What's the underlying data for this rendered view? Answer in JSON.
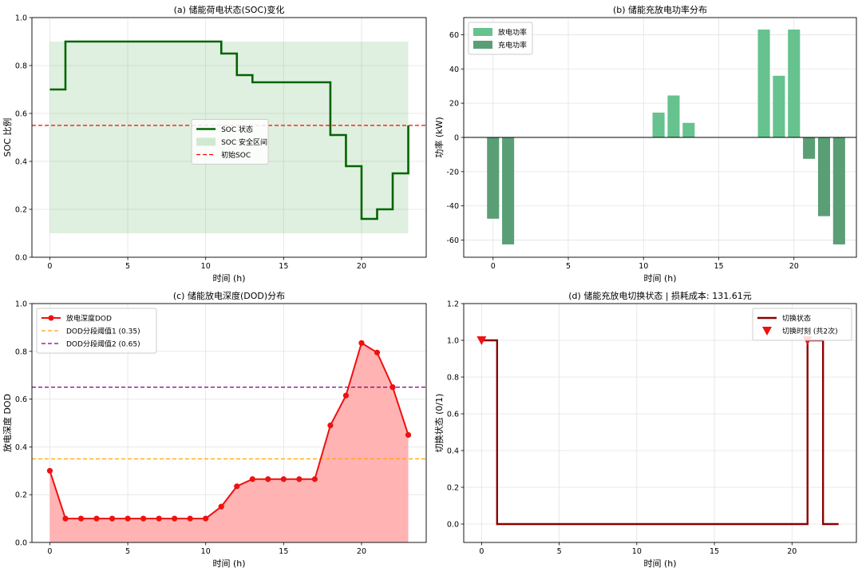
{
  "chart_data": [
    {
      "type": "line",
      "id": "a",
      "title": "(a) 储能荷电状态(SOC)变化",
      "xlabel": "时间 (h)",
      "ylabel": "SOC 比例",
      "xlim": [
        -1.15,
        24.15
      ],
      "ylim": [
        0,
        1.0
      ],
      "xticks": [
        0,
        5,
        10,
        15,
        20
      ],
      "yticks": [
        0.0,
        0.2,
        0.4,
        0.6,
        0.8,
        1.0
      ],
      "ytick_format": 1,
      "grid": true,
      "legend": "center-right",
      "x": [
        0,
        1,
        2,
        3,
        4,
        5,
        6,
        7,
        8,
        9,
        10,
        11,
        12,
        13,
        14,
        15,
        16,
        17,
        18,
        19,
        20,
        21,
        22,
        23
      ],
      "series": [
        {
          "name": "SOC 状态",
          "style": "step-post",
          "color": "#006400",
          "values": [
            0.7,
            0.9,
            0.9,
            0.9,
            0.9,
            0.9,
            0.9,
            0.9,
            0.9,
            0.9,
            0.9,
            0.85,
            0.76,
            0.73,
            0.73,
            0.73,
            0.73,
            0.73,
            0.51,
            0.38,
            0.16,
            0.2,
            0.35,
            0.55
          ]
        }
      ],
      "band": {
        "name": "SOC 安全区间",
        "y0": 0.1,
        "y1": 0.9,
        "x0": 0,
        "x1": 23,
        "color": "#2e9a2e"
      },
      "hline": {
        "name": "初始SOC",
        "y": 0.55,
        "color": "#ff0000"
      }
    },
    {
      "type": "bar",
      "id": "b",
      "title": "(b) 储能充放电功率分布",
      "xlabel": "时间 (h)",
      "ylabel": "功率 (kW)",
      "xlim": [
        -1.95,
        24.15
      ],
      "ylim": [
        -70,
        70
      ],
      "xticks": [
        0,
        5,
        10,
        15,
        20
      ],
      "yticks": [
        -60,
        -40,
        -20,
        0,
        20,
        40,
        60
      ],
      "ytick_format": 0,
      "grid": true,
      "legend": "top-left",
      "x": [
        0,
        1,
        2,
        3,
        4,
        5,
        6,
        7,
        8,
        9,
        10,
        11,
        12,
        13,
        14,
        15,
        16,
        17,
        18,
        19,
        20,
        21,
        22,
        23
      ],
      "series": [
        {
          "name": "放电功率",
          "color": "#66c28e",
          "values": [
            0,
            0,
            0,
            0,
            0,
            0,
            0,
            0,
            0,
            0,
            0,
            14.5,
            24.5,
            8.5,
            0,
            0,
            0,
            0,
            63,
            36,
            63,
            0,
            0,
            0
          ]
        },
        {
          "name": "充电功率",
          "color": "#5a9e76",
          "values": [
            -47.5,
            -62.5,
            0,
            0,
            0,
            0,
            0,
            0,
            0,
            0,
            0,
            0,
            0,
            0,
            0,
            0,
            0,
            0,
            0,
            0,
            0,
            -12.5,
            -46,
            -62.5
          ]
        }
      ]
    },
    {
      "type": "line",
      "id": "c",
      "title": "(c) 储能放电深度(DOD)分布",
      "xlabel": "时间 (h)",
      "ylabel": "放电深度 DOD",
      "xlim": [
        -1.15,
        24.15
      ],
      "ylim": [
        0,
        1.0
      ],
      "xticks": [
        0,
        5,
        10,
        15,
        20
      ],
      "yticks": [
        0.0,
        0.2,
        0.4,
        0.6,
        0.8,
        1.0
      ],
      "ytick_format": 1,
      "grid": true,
      "legend": "top-left",
      "x": [
        0,
        1,
        2,
        3,
        4,
        5,
        6,
        7,
        8,
        9,
        10,
        11,
        12,
        13,
        14,
        15,
        16,
        17,
        18,
        19,
        20,
        21,
        22,
        23
      ],
      "series": [
        {
          "name": "放电深度DOD",
          "color": "#ee1111",
          "fill": "#ffb3b3",
          "values": [
            0.3,
            0.1,
            0.1,
            0.1,
            0.1,
            0.1,
            0.1,
            0.1,
            0.1,
            0.1,
            0.1,
            0.15,
            0.235,
            0.265,
            0.265,
            0.265,
            0.265,
            0.265,
            0.49,
            0.615,
            0.835,
            0.795,
            0.65,
            0.45
          ]
        }
      ],
      "hlines": [
        {
          "name": "DOD分段阈值1 (0.35)",
          "y": 0.35,
          "color": "#ffa500"
        },
        {
          "name": "DOD分段阈值2 (0.65)",
          "y": 0.65,
          "color": "#800080"
        }
      ]
    },
    {
      "type": "line",
      "id": "d",
      "title": "(d) 储能充放电切换状态 | 损耗成本: 131.61元",
      "xlabel": "时间 (h)",
      "ylabel": "切换状态 (0/1)",
      "xlim": [
        -1.15,
        24.15
      ],
      "ylim": [
        -0.1,
        1.2
      ],
      "xticks": [
        0,
        5,
        10,
        15,
        20
      ],
      "yticks": [
        0.0,
        0.2,
        0.4,
        0.6,
        0.8,
        1.0,
        1.2
      ],
      "ytick_format": 1,
      "grid": true,
      "legend": "top-right",
      "x": [
        0,
        1,
        2,
        3,
        4,
        5,
        6,
        7,
        8,
        9,
        10,
        11,
        12,
        13,
        14,
        15,
        16,
        17,
        18,
        19,
        20,
        21,
        22,
        23
      ],
      "series": [
        {
          "name": "切换状态",
          "style": "step-post",
          "color": "#8b0000",
          "values": [
            1,
            0,
            0,
            0,
            0,
            0,
            0,
            0,
            0,
            0,
            0,
            0,
            0,
            0,
            0,
            0,
            0,
            0,
            0,
            0,
            0,
            1,
            0,
            0
          ]
        }
      ],
      "markers": {
        "name": "切换时刻 (共2次)",
        "color": "#ee1111",
        "x": [
          0,
          21
        ],
        "y": [
          1.0,
          1.0
        ]
      }
    }
  ]
}
